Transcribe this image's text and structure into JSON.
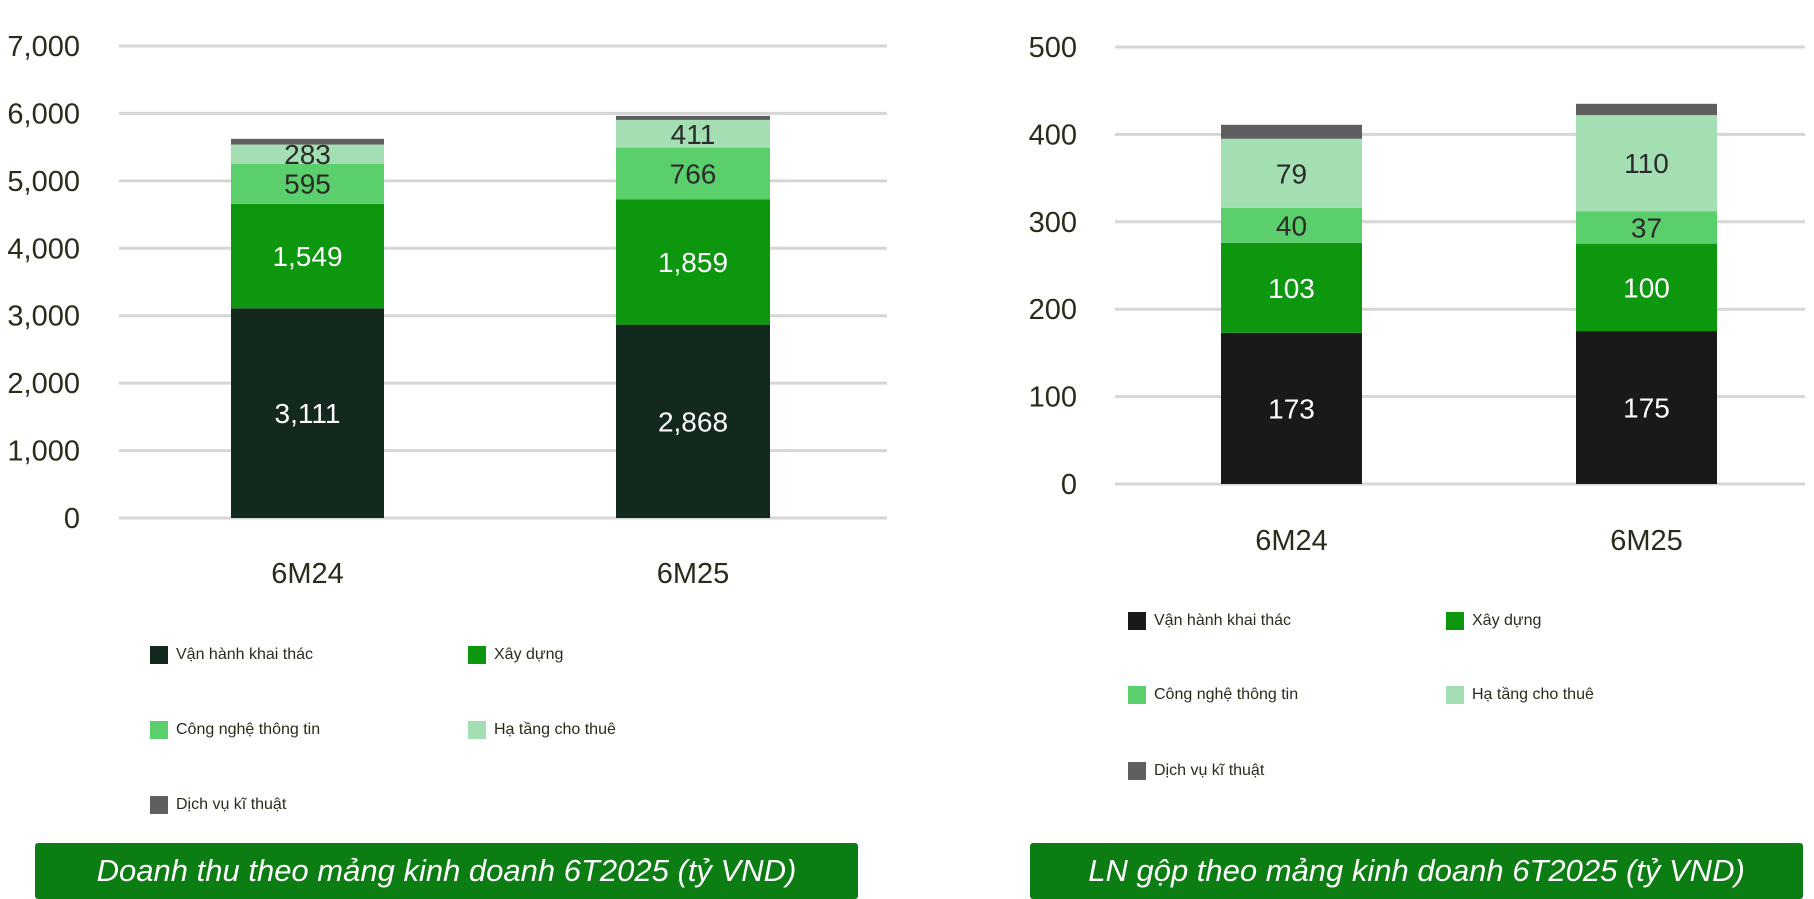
{
  "chart_data": [
    {
      "type": "bar",
      "stacked": true,
      "title": "Doanh thu theo mảng kinh doanh 6T2025 (tỷ VND)",
      "categories": [
        "6M24",
        "6M25"
      ],
      "ylim": [
        0,
        7000
      ],
      "yticks": [
        "0",
        "1,000",
        "2,000",
        "3,000",
        "4,000",
        "5,000",
        "6,000",
        "7,000"
      ],
      "grid": true,
      "legend_position": "bottom",
      "series": [
        {
          "name": "Vận hành khai thác",
          "values": [
            3111,
            2868
          ],
          "labels": [
            "3,111",
            "2,868"
          ],
          "color": "#14291d",
          "label_color": "#ffffff"
        },
        {
          "name": "Xây dựng",
          "values": [
            1549,
            1859
          ],
          "labels": [
            "1,549",
            "1,859"
          ],
          "color": "#0c970f",
          "label_color": "#ffffff"
        },
        {
          "name": "Công nghệ thông tin",
          "values": [
            595,
            766
          ],
          "labels": [
            "595",
            "766"
          ],
          "color": "#5bcf6b",
          "label_color": "#2b2b2b"
        },
        {
          "name": "Hạ tầng cho thuê",
          "values": [
            283,
            411
          ],
          "labels": [
            "283",
            "411"
          ],
          "color": "#a3dfb3",
          "label_color": "#2b2b2b"
        },
        {
          "name": "Dịch vụ kĩ thuật",
          "values": [
            85,
            60
          ],
          "labels": [
            "",
            ""
          ],
          "color": "#5f5f5f",
          "label_color": "#2b2b2b"
        }
      ]
    },
    {
      "type": "bar",
      "stacked": true,
      "title": "LN gộp theo mảng kinh doanh 6T2025 (tỷ VND)",
      "categories": [
        "6M24",
        "6M25"
      ],
      "ylim": [
        0,
        500
      ],
      "yticks": [
        "0",
        "100",
        "200",
        "300",
        "400",
        "500"
      ],
      "grid": true,
      "legend_position": "bottom",
      "series": [
        {
          "name": "Vận hành khai thác",
          "values": [
            173,
            175
          ],
          "labels": [
            "173",
            "175"
          ],
          "color": "#191919",
          "label_color": "#ffffff"
        },
        {
          "name": "Xây dựng",
          "values": [
            103,
            100
          ],
          "labels": [
            "103",
            "100"
          ],
          "color": "#0c970f",
          "label_color": "#ffffff"
        },
        {
          "name": "Công nghệ thông tin",
          "values": [
            40,
            37
          ],
          "labels": [
            "40",
            "37"
          ],
          "color": "#5bcf6b",
          "label_color": "#2b2b2b"
        },
        {
          "name": "Hạ tầng cho thuê",
          "values": [
            79,
            110
          ],
          "labels": [
            "79",
            "110"
          ],
          "color": "#a3dfb3",
          "label_color": "#2b2b2b"
        },
        {
          "name": "Dịch vụ kĩ thuật",
          "values": [
            16,
            13
          ],
          "labels": [
            "",
            ""
          ],
          "color": "#5f5f5f",
          "label_color": "#2b2b2b"
        }
      ]
    }
  ]
}
